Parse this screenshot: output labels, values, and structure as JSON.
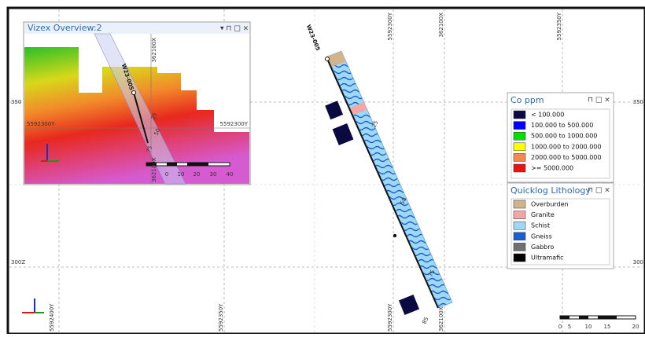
{
  "main_view": {
    "hole_label": "W23-005",
    "top_grid_labels": [
      "5592300Y",
      "362100X",
      "5592350Y"
    ],
    "bottom_grid_labels": [
      "5592400Y",
      "5592350Y",
      "5592300Y",
      "362100X"
    ],
    "side_labels": [
      "350",
      "300Z",
      "350",
      "300"
    ],
    "depth_labels": [
      "25",
      "50",
      "75",
      "85"
    ],
    "scale_labels": [
      "0",
      "5",
      "10",
      "15",
      "20"
    ]
  },
  "overview": {
    "title": "Vizex Overview:2",
    "hole_label": "W23-005",
    "grid_labels": [
      "5592300Y",
      "5592300Y",
      "362100X",
      "362100X"
    ],
    "depth_labels": [
      "25",
      "50",
      "75"
    ],
    "scale_labels": [
      "0",
      "10",
      "20",
      "30",
      "40"
    ]
  },
  "co_legend": {
    "title": "Co ppm",
    "items": [
      {
        "label": "< 100.000",
        "color": "#0a0a40"
      },
      {
        "label": "100.000 to 500.000",
        "color": "#0000ff"
      },
      {
        "label": "500.000 to 1000.000",
        "color": "#00e000"
      },
      {
        "label": "1000.000 to 2000.000",
        "color": "#ffff00"
      },
      {
        "label": "2000.000 to 5000.000",
        "color": "#f5884a"
      },
      {
        "label": ">= 5000.000",
        "color": "#ee1111"
      }
    ]
  },
  "litho_legend": {
    "title": "Quicklog Lithology",
    "items": [
      {
        "label": "Overburden",
        "color": "#d2b48c"
      },
      {
        "label": "Granite",
        "color": "#f4a6a6"
      },
      {
        "label": "Schist",
        "color": "#9fd8f5"
      },
      {
        "label": "Gneiss",
        "color": "#1a5fd0"
      },
      {
        "label": "Gabbro",
        "color": "#707070"
      },
      {
        "label": "Ultramafic",
        "color": "#000000"
      }
    ]
  }
}
